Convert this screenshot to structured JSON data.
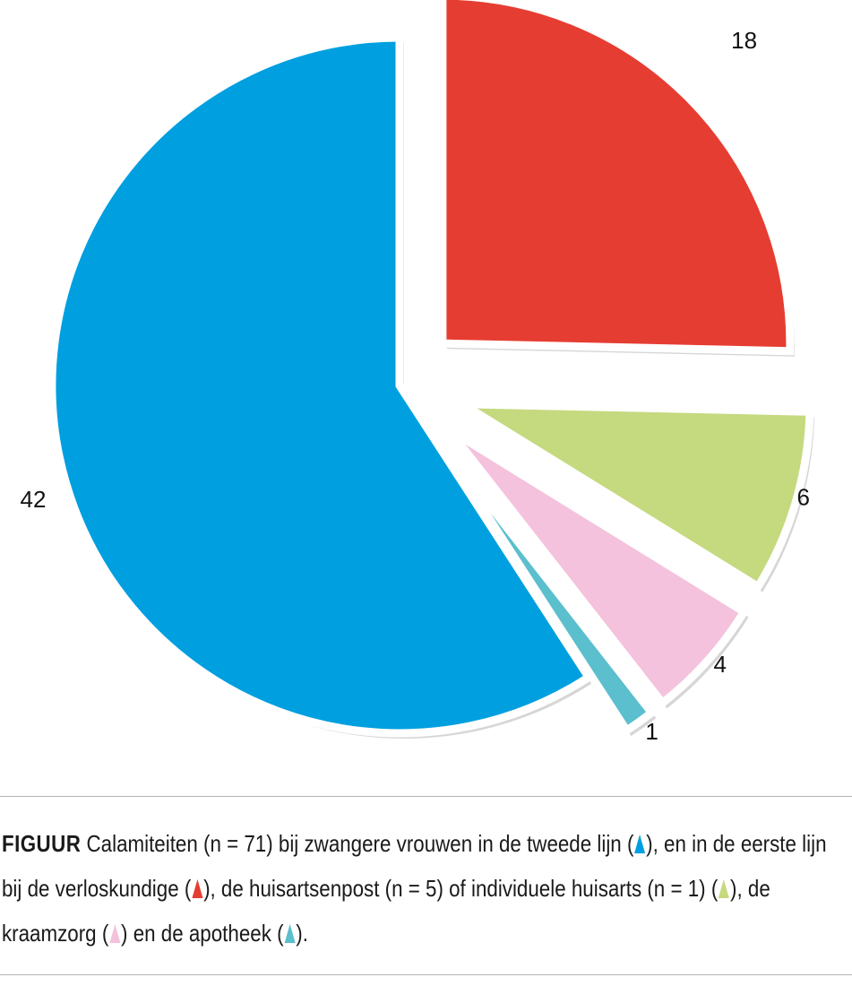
{
  "chart_data": {
    "type": "pie",
    "exploded": true,
    "total": 71,
    "slices": [
      {
        "value": 18,
        "label": "18",
        "color": "#e63d32"
      },
      {
        "value": 6,
        "label": "6",
        "color": "#c5d97f"
      },
      {
        "value": 4,
        "label": "4",
        "color": "#f4c2dc"
      },
      {
        "value": 1,
        "label": "1",
        "color": "#5bbfcd"
      },
      {
        "value": 42,
        "label": "42",
        "color": "#009fe0"
      }
    ],
    "shadow_color": "#d6d6d6"
  },
  "caption": {
    "lead": "FIGUUR",
    "part1": "Calamiteiten (n = 71) bij zwangere vrouwen in de tweede lijn (",
    "part2": "), en in de eerste lijn bij de verloskundige (",
    "part3": "), de huisartsenpost (n = 5) of individuele huisarts (n = 1) (",
    "part4": "), de kraamzorg (",
    "part5": ") en de apotheek (",
    "part6": ").",
    "marker_colors": [
      "#009fe0",
      "#e63d32",
      "#c5d97f",
      "#f4c2dc",
      "#5bbfcd"
    ]
  }
}
